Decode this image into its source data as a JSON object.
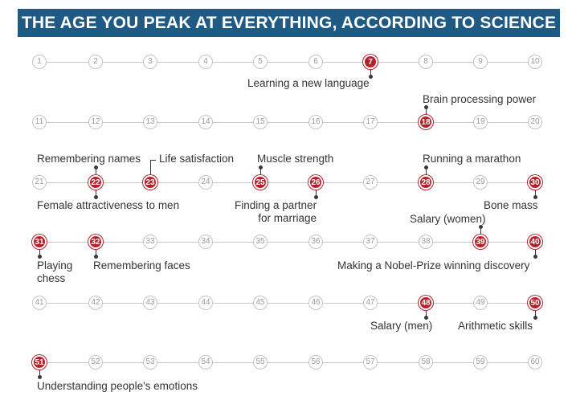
{
  "header": {
    "title": "THE AGE YOU PEAK AT EVERYTHING, ACCORDING TO SCIENCE",
    "background": "#1f5a85"
  },
  "colors": {
    "peak": "#b3222a",
    "inactive_border": "#c4c4c4",
    "track": "#c9c9c9",
    "label": "#333333"
  },
  "timeline": {
    "start_age": 1,
    "end_age": 60,
    "per_row": 10
  },
  "peaks": [
    {
      "age": 7,
      "label": "Learning a new language",
      "side": "below"
    },
    {
      "age": 18,
      "label": "Brain processing power",
      "side": "above"
    },
    {
      "age": 22,
      "label": "Remembering names",
      "side": "above"
    },
    {
      "age": 22,
      "label": "Female attractiveness to men",
      "side": "below"
    },
    {
      "age": 23,
      "label": "Life satisfaction",
      "side": "above"
    },
    {
      "age": 25,
      "label": "Muscle strength",
      "side": "above"
    },
    {
      "age": 26,
      "label": "Finding a partner\nfor marriage",
      "side": "below"
    },
    {
      "age": 28,
      "label": "Running a marathon",
      "side": "above"
    },
    {
      "age": 30,
      "label": "Bone mass",
      "side": "below"
    },
    {
      "age": 31,
      "label": "Playing\nchess",
      "side": "below"
    },
    {
      "age": 32,
      "label": "Remembering faces",
      "side": "below"
    },
    {
      "age": 39,
      "label": "Salary (women)",
      "side": "above"
    },
    {
      "age": 40,
      "label": "Making a Nobel-Prize winning discovery",
      "side": "below"
    },
    {
      "age": 48,
      "label": "Salary (men)",
      "side": "below"
    },
    {
      "age": 50,
      "label": "Arithmetic skills",
      "side": "below"
    },
    {
      "age": 51,
      "label": "Understanding people's emotions",
      "side": "below"
    }
  ]
}
